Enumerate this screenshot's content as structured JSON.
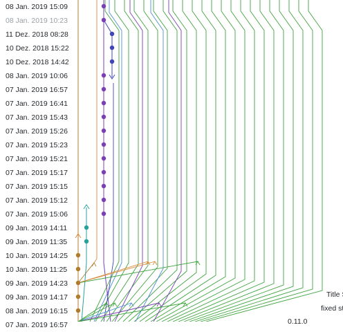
{
  "commit_list": {
    "dates": [
      "08 Jan. 2019 15:09",
      "08 Jan. 2019 10:23",
      "11 Dez. 2018 08:28",
      "10 Dez. 2018 15:22",
      "10 Dez. 2018 14:42",
      "08 Jan. 2019 10:06",
      "07 Jan. 2019 16:57",
      "07 Jan. 2019 16:41",
      "07 Jan. 2019 15:43",
      "07 Jan. 2019 15:26",
      "07 Jan. 2019 15:23",
      "07 Jan. 2019 15:21",
      "07 Jan. 2019 15:17",
      "07 Jan. 2019 15:15",
      "07 Jan. 2019 15:12",
      "07 Jan. 2019 15:06",
      "09 Jan. 2019 14:11",
      "09 Jan. 2019 11:35",
      "10 Jan. 2019 14:25",
      "10 Jan. 2019 11:25",
      "09 Jan. 2019 14:23",
      "09 Jan. 2019 14:17",
      "08 Jan. 2019 16:15",
      "07 Jan. 2019 16:57"
    ],
    "muted_index": 1
  },
  "side_labels": {
    "title": "Title S",
    "fixed": "fixed st",
    "version": "0.11.0"
  },
  "colors": {
    "purple": "#7b3fb5",
    "blue": "#3f45b8",
    "teal": "#2aa198",
    "brown": "#b07b2c",
    "orange": "#d98a3a",
    "green": "#3da33d",
    "lightblue": "#4c8fd6",
    "grey": "#9aa0a6"
  }
}
